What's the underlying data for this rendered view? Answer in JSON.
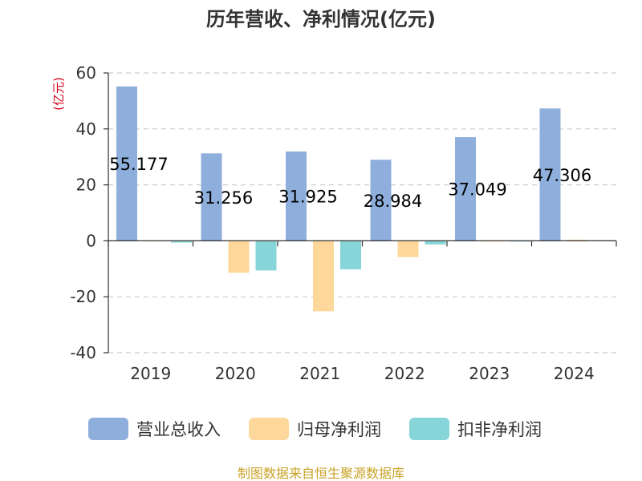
{
  "colors": {
    "revenue": "#8eaedc",
    "net_profit": "#fdd89a",
    "net_profit_excl": "#86d5d8",
    "grid": "#cccccc",
    "axis": "#333333",
    "unit": "#d9001b",
    "footer": "#c8a226"
  },
  "chart_data": {
    "type": "bar",
    "title": "历年营收、净利情况(亿元)",
    "ylabel": "(亿元)",
    "categories": [
      "2019",
      "2020",
      "2021",
      "2022",
      "2023",
      "2024"
    ],
    "series": [
      {
        "name": "营业总收入",
        "values": [
          55.177,
          31.256,
          31.925,
          28.984,
          37.049,
          47.306
        ]
      },
      {
        "name": "归母净利润",
        "values": [
          -0.2,
          -11.4,
          -25.2,
          -5.8,
          -0.3,
          0.4
        ]
      },
      {
        "name": "扣非净利润",
        "values": [
          -0.6,
          -10.6,
          -10.2,
          -1.3,
          -0.3,
          0.2
        ]
      }
    ],
    "data_labels": [
      "55.177",
      "31.256",
      "31.925",
      "28.984",
      "37.049",
      "47.306"
    ],
    "ylim": [
      -40,
      60
    ],
    "yticks": [
      "60",
      "40",
      "20",
      "0",
      "-20",
      "-40"
    ],
    "grid": true,
    "legend_position": "bottom"
  },
  "footer": "制图数据来自恒生聚源数据库"
}
